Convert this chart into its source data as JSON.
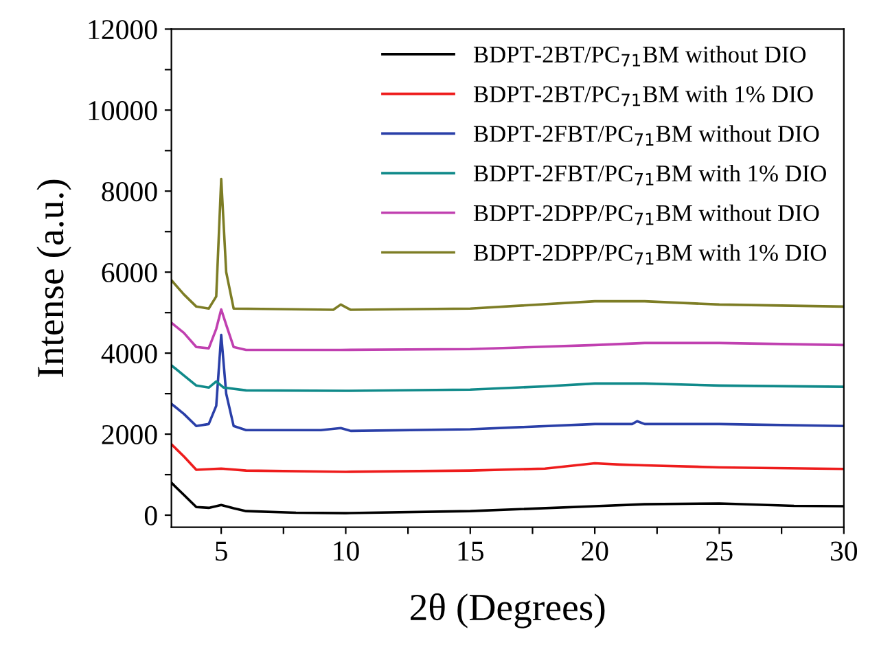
{
  "chart_data": {
    "type": "line",
    "xlabel": "2θ (Degrees)",
    "ylabel": "Intense (a.u.)",
    "xlim": [
      3,
      30
    ],
    "xticks": [
      5,
      {
        "value": 7.5,
        "label": null
      },
      10,
      {
        "value": 12.5,
        "label": null
      },
      15,
      {
        "value": 17.5,
        "label": null
      },
      20,
      {
        "value": 22.5,
        "label": null
      },
      25,
      {
        "value": 27.5,
        "label": null
      },
      30
    ],
    "ylim": [
      -300,
      12000
    ],
    "yticks": [
      0,
      {
        "value": 1000,
        "label": null
      },
      2000,
      {
        "value": 3000,
        "label": null
      },
      4000,
      {
        "value": 5000,
        "label": null
      },
      6000,
      {
        "value": 7000,
        "label": null
      },
      8000,
      {
        "value": 9000,
        "label": null
      },
      10000,
      {
        "value": 11000,
        "label": null
      },
      12000
    ],
    "legend": "top right",
    "grid": false,
    "marker": "none",
    "line_style": "solid",
    "series": [
      {
        "name": "BDPT-2BT/PC$_{71}$BM without DIO",
        "color": "#000000",
        "x": [
          3,
          3.5,
          4,
          4.5,
          5,
          5.5,
          6,
          8,
          10,
          15,
          20,
          22,
          25,
          28,
          30
        ],
        "values": [
          800,
          500,
          200,
          180,
          250,
          170,
          100,
          60,
          50,
          100,
          220,
          270,
          290,
          230,
          220
        ]
      },
      {
        "name": "BDPT-2BT/PC$_{71}$BM with 1% DIO",
        "color": "#ee1c1c",
        "x": [
          3,
          3.5,
          4,
          5,
          6,
          10,
          15,
          18,
          20,
          21,
          22,
          25,
          30
        ],
        "values": [
          1750,
          1450,
          1120,
          1150,
          1100,
          1070,
          1100,
          1150,
          1280,
          1250,
          1230,
          1180,
          1140
        ]
      },
      {
        "name": "BDPT-2FBT/PC$_{71}$BM without DIO",
        "color": "#2a3fa8",
        "x": [
          3,
          3.5,
          4,
          4.5,
          4.8,
          5,
          5.2,
          5.5,
          6,
          9,
          9.8,
          10.2,
          15,
          20,
          21.5,
          21.7,
          22,
          25,
          30
        ],
        "values": [
          2750,
          2500,
          2200,
          2250,
          2700,
          4450,
          3000,
          2200,
          2100,
          2100,
          2150,
          2080,
          2120,
          2250,
          2250,
          2320,
          2250,
          2250,
          2200
        ]
      },
      {
        "name": "BDPT-2FBT/PC$_{71}$BM with 1% DIO",
        "color": "#108a8a",
        "x": [
          3,
          3.5,
          4,
          4.5,
          4.8,
          5.1,
          6,
          10,
          15,
          18,
          20,
          22,
          25,
          30
        ],
        "values": [
          3700,
          3450,
          3200,
          3150,
          3300,
          3150,
          3080,
          3070,
          3100,
          3180,
          3250,
          3250,
          3200,
          3170
        ]
      },
      {
        "name": "BDPT-2DPP/PC$_{71}$BM without DIO",
        "color": "#c040b0",
        "x": [
          3,
          3.5,
          4,
          4.5,
          4.8,
          5,
          5.2,
          5.5,
          6,
          9.8,
          15,
          20,
          22,
          25,
          30
        ],
        "values": [
          4750,
          4500,
          4150,
          4120,
          4600,
          5080,
          4700,
          4150,
          4080,
          4080,
          4100,
          4200,
          4250,
          4250,
          4200
        ]
      },
      {
        "name": "BDPT-2DPP/PC$_{71}$BM with 1% DIO",
        "color": "#7d7d25",
        "x": [
          3,
          3.5,
          4,
          4.5,
          4.8,
          5,
          5.2,
          5.5,
          9.5,
          9.8,
          10.2,
          15,
          20,
          22,
          25,
          30
        ],
        "values": [
          5800,
          5450,
          5150,
          5100,
          5400,
          8300,
          6000,
          5100,
          5070,
          5200,
          5070,
          5100,
          5280,
          5280,
          5200,
          5150
        ]
      }
    ]
  }
}
